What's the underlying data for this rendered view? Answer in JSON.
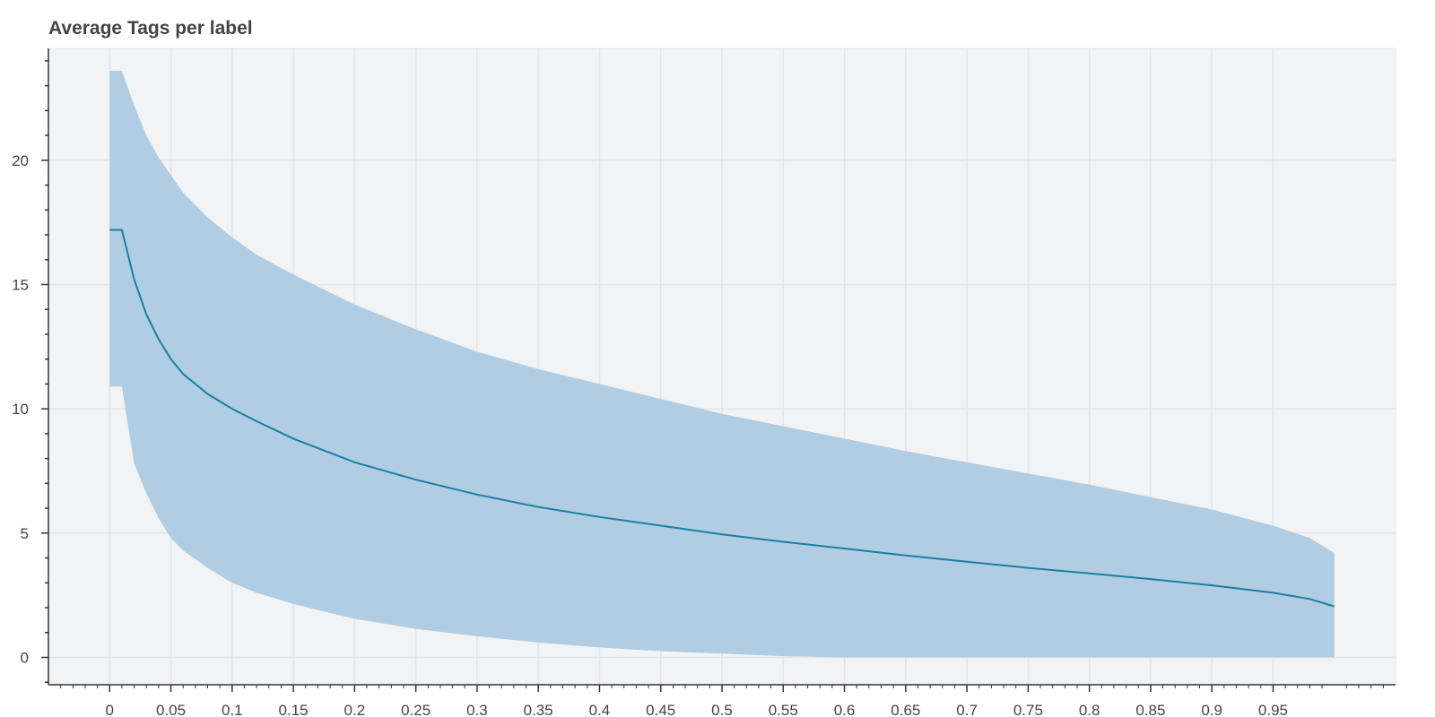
{
  "chart_data": {
    "type": "area",
    "title": "Average Tags per label",
    "xlabel": "",
    "ylabel": "",
    "xlim": [
      -0.05,
      1.05
    ],
    "ylim": [
      -1.1,
      24.5
    ],
    "grid": true,
    "x_ticks": [
      "0",
      "0.05",
      "0.1",
      "0.15",
      "0.2",
      "0.25",
      "0.3",
      "0.35",
      "0.4",
      "0.45",
      "0.5",
      "0.55",
      "0.6",
      "0.65",
      "0.7",
      "0.75",
      "0.8",
      "0.85",
      "0.9",
      "0.95"
    ],
    "y_ticks": [
      "0",
      "5",
      "10",
      "15",
      "20"
    ],
    "series": [
      {
        "role": "mean",
        "x": [
          0,
          0.01,
          0.02,
          0.03,
          0.04,
          0.05,
          0.06,
          0.08,
          0.1,
          0.12,
          0.15,
          0.2,
          0.25,
          0.3,
          0.35,
          0.4,
          0.45,
          0.5,
          0.55,
          0.6,
          0.65,
          0.7,
          0.75,
          0.8,
          0.85,
          0.9,
          0.95,
          0.98,
          1.0
        ],
        "y": [
          17.2,
          17.2,
          15.2,
          13.8,
          12.8,
          12.0,
          11.4,
          10.6,
          10.0,
          9.5,
          8.8,
          7.85,
          7.15,
          6.55,
          6.05,
          5.65,
          5.3,
          4.95,
          4.65,
          4.38,
          4.1,
          3.85,
          3.6,
          3.38,
          3.15,
          2.9,
          2.6,
          2.35,
          2.05
        ]
      },
      {
        "role": "band",
        "x": [
          0,
          0.01,
          0.02,
          0.03,
          0.04,
          0.05,
          0.06,
          0.08,
          0.1,
          0.12,
          0.15,
          0.2,
          0.25,
          0.3,
          0.35,
          0.4,
          0.45,
          0.5,
          0.55,
          0.6,
          0.65,
          0.7,
          0.75,
          0.8,
          0.85,
          0.9,
          0.95,
          0.98,
          1.0
        ],
        "upper": [
          23.6,
          23.6,
          22.2,
          21.0,
          20.1,
          19.4,
          18.7,
          17.7,
          16.9,
          16.2,
          15.4,
          14.2,
          13.2,
          12.3,
          11.6,
          11.0,
          10.4,
          9.8,
          9.3,
          8.8,
          8.3,
          7.85,
          7.4,
          6.95,
          6.45,
          5.95,
          5.3,
          4.8,
          4.2
        ],
        "lower": [
          10.9,
          10.9,
          7.8,
          6.6,
          5.6,
          4.8,
          4.3,
          3.6,
          3.0,
          2.6,
          2.15,
          1.55,
          1.15,
          0.85,
          0.6,
          0.4,
          0.25,
          0.15,
          0.05,
          0.0,
          0.0,
          0.0,
          0.0,
          0.0,
          0.0,
          0.0,
          0.0,
          0.0,
          0.0
        ]
      }
    ],
    "colors": {
      "line": "#1a7fa3",
      "band": "#b0cde3",
      "plot_bg": "#f2f3f5",
      "grid": "#e2e4e8",
      "axis": "#333333",
      "text": "#444444"
    }
  }
}
